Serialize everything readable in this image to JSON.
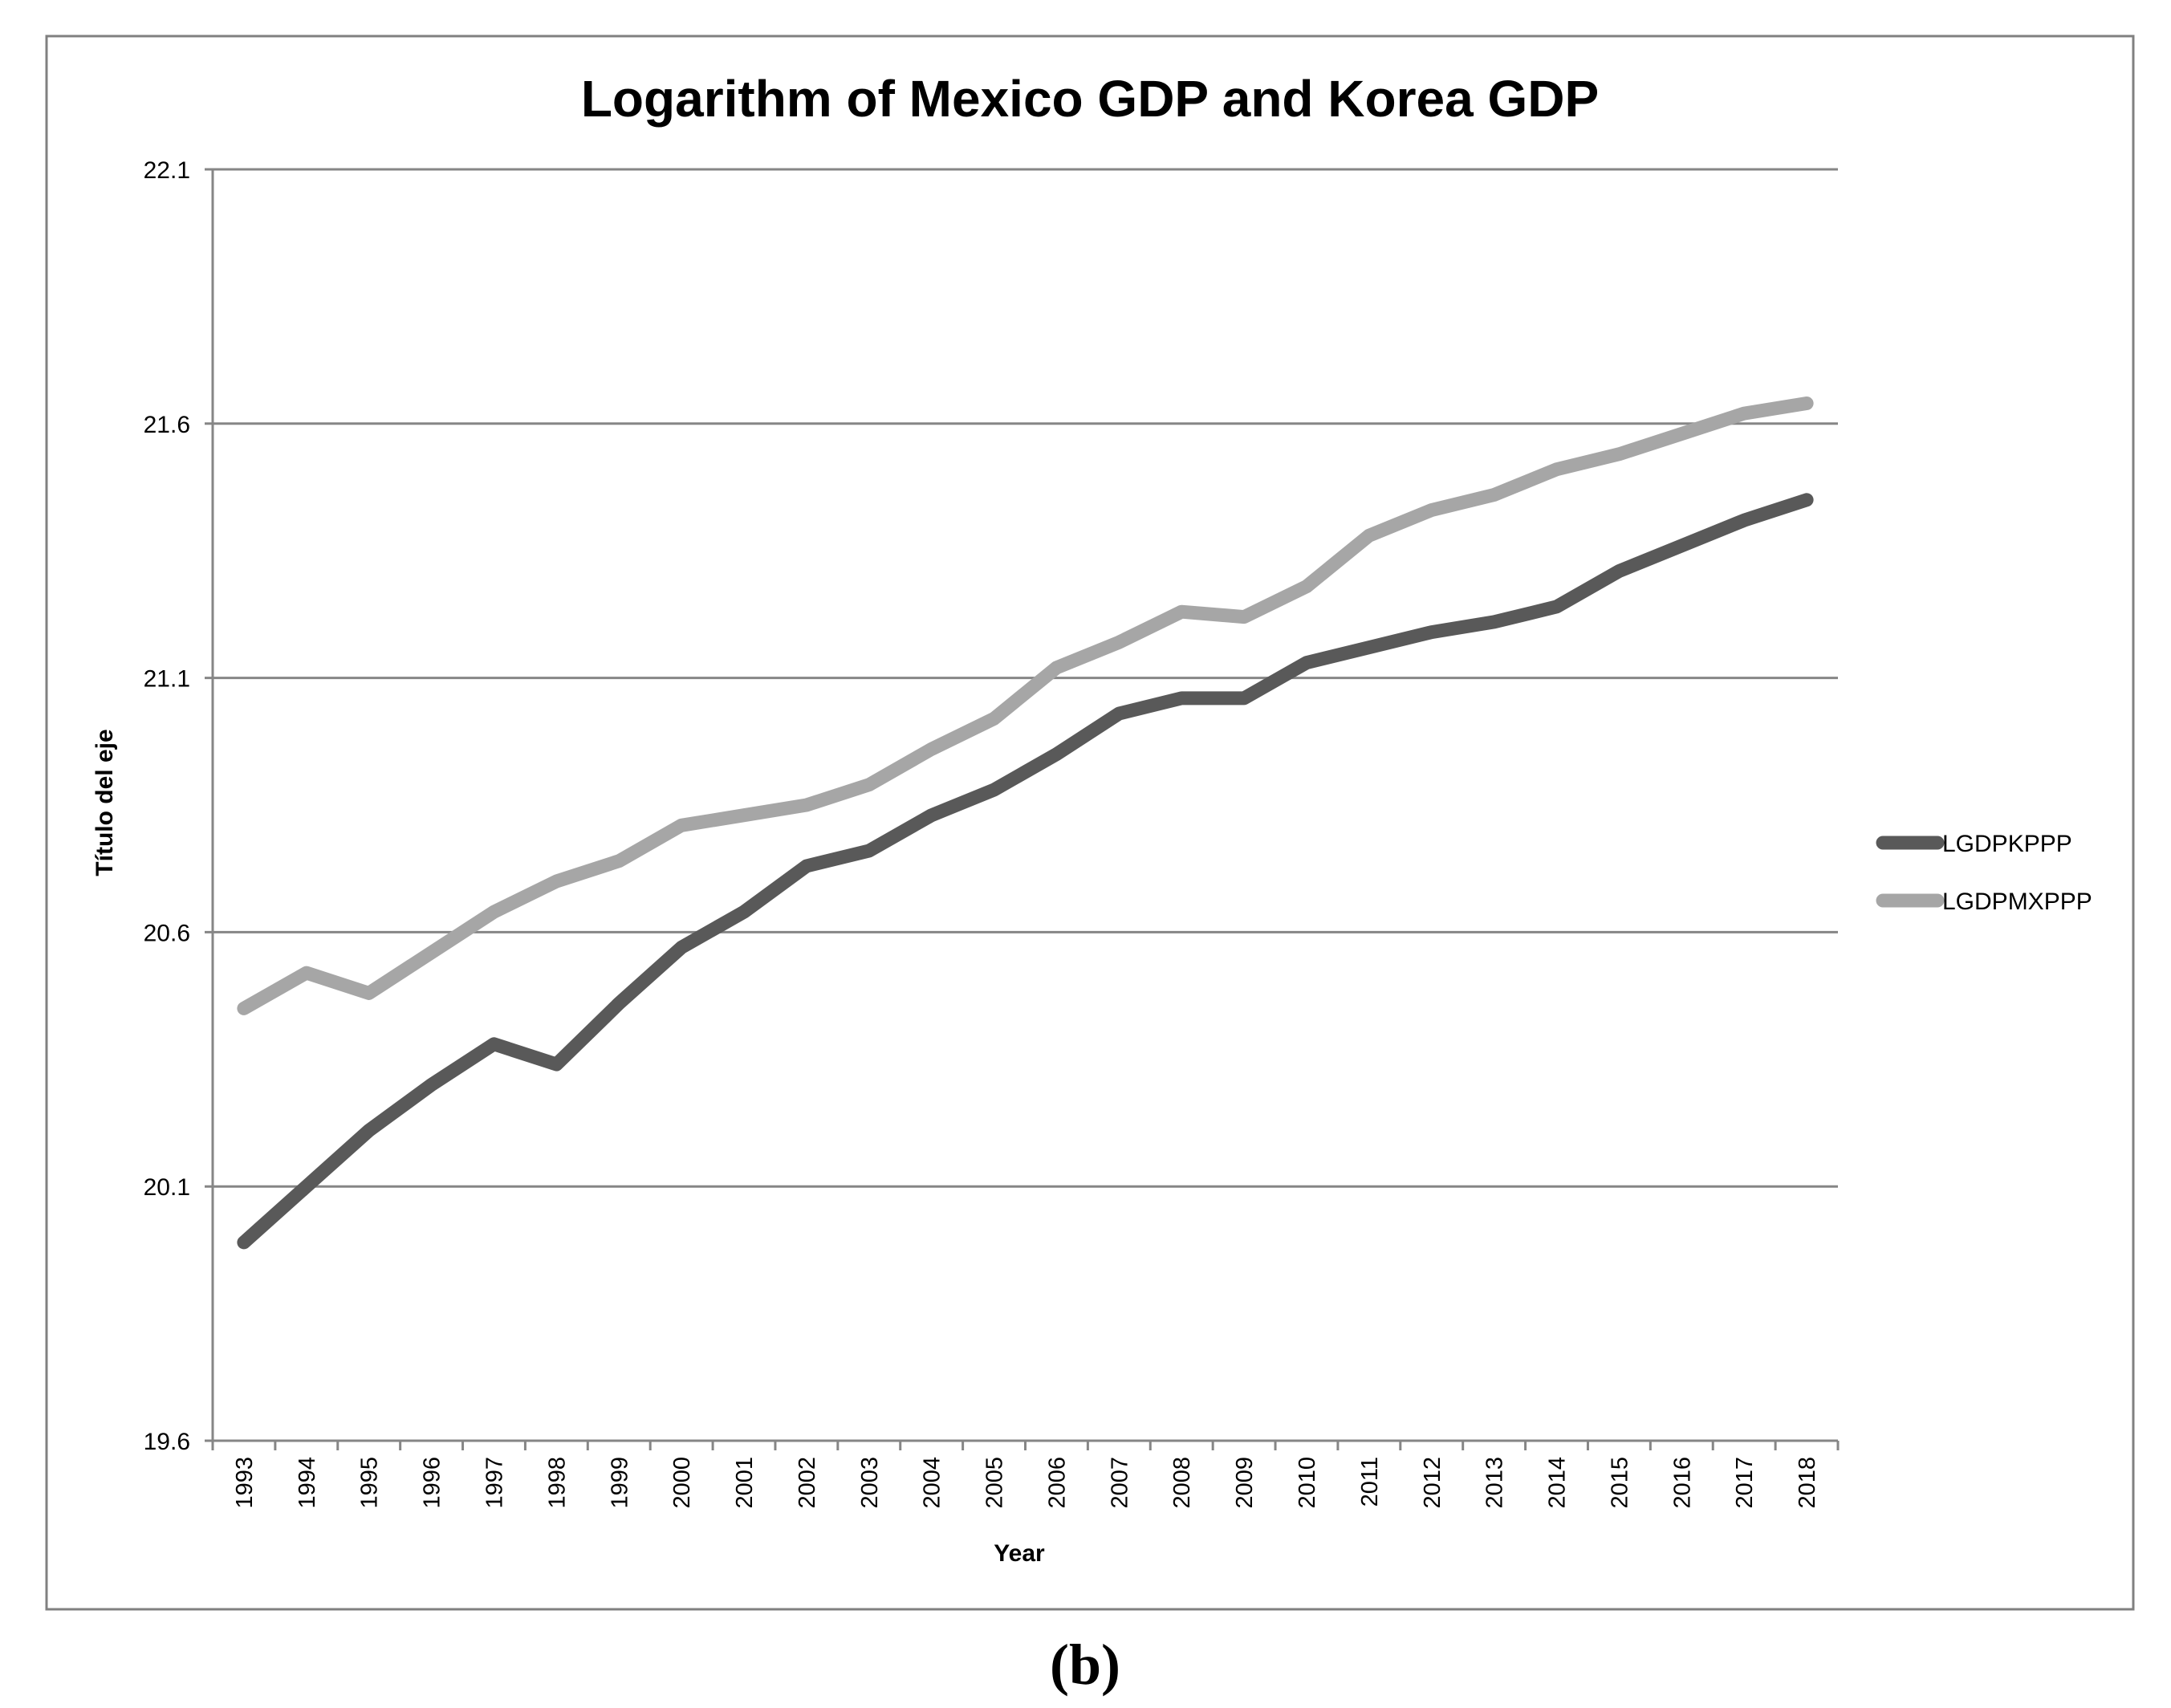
{
  "chart_data": {
    "type": "line",
    "title": "Logarithm of Mexico GDP and Korea GDP",
    "xlabel": "Year",
    "ylabel": "Título del eje",
    "ylim": [
      19.6,
      22.1
    ],
    "yticks": [
      "19.6",
      "20.1",
      "20.6",
      "21.1",
      "21.6",
      "22.1"
    ],
    "ytick_values": [
      19.6,
      20.1,
      20.6,
      21.1,
      21.6,
      22.1
    ],
    "grid": true,
    "legend_position": "right",
    "categories": [
      "1993",
      "1994",
      "1995",
      "1996",
      "1997",
      "1998",
      "1999",
      "2000",
      "2001",
      "2002",
      "2003",
      "2004",
      "2005",
      "2006",
      "2007",
      "2008",
      "2009",
      "2010",
      "2011",
      "2012",
      "2013",
      "2014",
      "2015",
      "2016",
      "2017",
      "2018"
    ],
    "series": [
      {
        "name": "LGDPKPPP",
        "color": "#595959",
        "values": [
          19.99,
          20.1,
          20.21,
          20.3,
          20.38,
          20.34,
          20.46,
          20.57,
          20.64,
          20.73,
          20.76,
          20.83,
          20.88,
          20.95,
          21.03,
          21.06,
          21.06,
          21.13,
          21.16,
          21.19,
          21.21,
          21.24,
          21.31,
          21.36,
          21.41,
          21.45
        ]
      },
      {
        "name": "LGDPMXPPP",
        "color": "#a6a6a6",
        "values": [
          20.45,
          20.52,
          20.48,
          20.56,
          20.64,
          20.7,
          20.74,
          20.81,
          20.83,
          20.85,
          20.89,
          20.96,
          21.02,
          21.12,
          21.17,
          21.23,
          21.22,
          21.28,
          21.38,
          21.43,
          21.46,
          21.51,
          21.54,
          21.58,
          21.62,
          21.64
        ]
      }
    ]
  },
  "caption": "(b)"
}
